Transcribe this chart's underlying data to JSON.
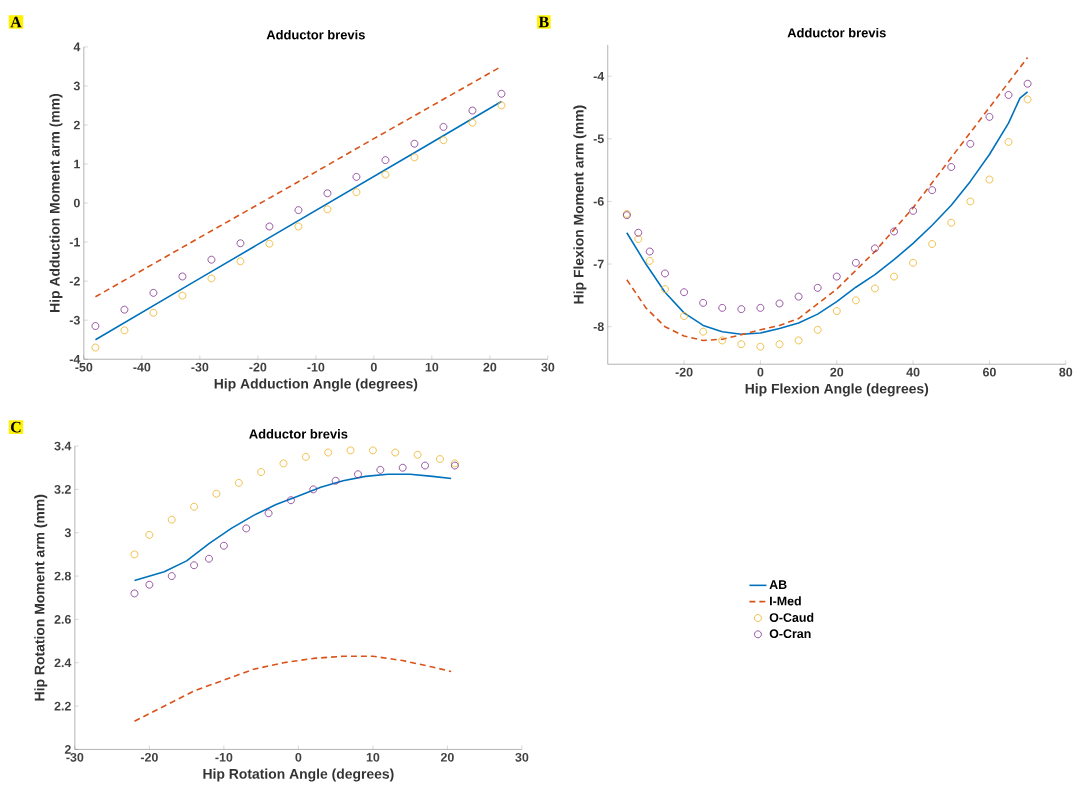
{
  "chart_data": [
    {
      "type": "line",
      "title": "Adductor brevis",
      "xlabel": "Hip Adduction Angle (degrees)",
      "ylabel": "Hip Adduction Moment arm (mm)",
      "annotations": [
        "A"
      ],
      "xlim": [
        -50,
        30
      ],
      "ylim": [
        -4,
        4
      ],
      "xticks": [
        -50,
        -40,
        -30,
        -20,
        -10,
        0,
        10,
        20,
        30
      ],
      "yticks": [
        -4,
        -3,
        -2,
        -1,
        0,
        1,
        2,
        3,
        4
      ],
      "series": [
        {
          "type": "line",
          "color": "#0072bd",
          "line_style": "solid",
          "x": [
            -48,
            -30,
            -10,
            0,
            10,
            22
          ],
          "values": [
            -3.5,
            -1.93,
            -0.19,
            0.68,
            1.55,
            2.6
          ]
        },
        {
          "type": "line",
          "color": "#d95319",
          "line_style": "dashed",
          "x": [
            -48,
            -30,
            -10,
            0,
            10,
            22
          ],
          "values": [
            -2.4,
            -0.88,
            0.8,
            1.65,
            2.49,
            3.5
          ]
        },
        {
          "type": "scatter",
          "color": "#edb120",
          "marker": "circle",
          "x": [
            -48,
            -43,
            -38,
            -33,
            -28,
            -23,
            -18,
            -13,
            -8,
            -3,
            2,
            7,
            12,
            17,
            22
          ],
          "values": [
            -3.7,
            -3.26,
            -2.81,
            -2.37,
            -1.93,
            -1.49,
            -1.04,
            -0.6,
            -0.16,
            0.28,
            0.73,
            1.17,
            1.61,
            2.06,
            2.5
          ]
        },
        {
          "type": "scatter",
          "color": "#7e2f8e",
          "marker": "circle",
          "x": [
            -48,
            -43,
            -38,
            -33,
            -28,
            -23,
            -18,
            -13,
            -8,
            -3,
            2,
            7,
            12,
            17,
            22
          ],
          "values": [
            -3.15,
            -2.73,
            -2.3,
            -1.88,
            -1.45,
            -1.03,
            -0.6,
            -0.18,
            0.25,
            0.67,
            1.1,
            1.52,
            1.95,
            2.37,
            2.8
          ]
        }
      ]
    },
    {
      "type": "line",
      "title": "Adductor brevis",
      "xlabel": "Hip Flexion Angle (degrees)",
      "ylabel": "Hip Flexion Moment arm (mm)",
      "annotations": [
        "B"
      ],
      "xlim": [
        -40,
        80
      ],
      "ylim": [
        -8.6,
        -3.5
      ],
      "xticks": [
        -20,
        0,
        20,
        40,
        60,
        80
      ],
      "yticks": [
        -8,
        -7,
        -6,
        -5,
        -4
      ],
      "series": [
        {
          "type": "line",
          "color": "#0072bd",
          "line_style": "solid",
          "x": [
            -35,
            -30,
            -25,
            -20,
            -15,
            -10,
            -5,
            0,
            5,
            10,
            15,
            20,
            25,
            30,
            35,
            40,
            45,
            50,
            55,
            60,
            65,
            68,
            70
          ],
          "values": [
            -6.5,
            -7.0,
            -7.45,
            -7.78,
            -7.98,
            -8.08,
            -8.12,
            -8.1,
            -8.03,
            -7.94,
            -7.8,
            -7.6,
            -7.37,
            -7.17,
            -6.93,
            -6.67,
            -6.38,
            -6.06,
            -5.68,
            -5.25,
            -4.75,
            -4.35,
            -4.25
          ]
        },
        {
          "type": "line",
          "color": "#d95319",
          "line_style": "dashed",
          "x": [
            -35,
            -30,
            -25,
            -20,
            -15,
            -10,
            -5,
            0,
            5,
            10,
            20,
            30,
            40,
            50,
            60,
            70
          ],
          "values": [
            -7.25,
            -7.7,
            -8.0,
            -8.15,
            -8.22,
            -8.2,
            -8.13,
            -8.05,
            -7.98,
            -7.87,
            -7.4,
            -6.8,
            -6.1,
            -5.3,
            -4.5,
            -3.7
          ]
        },
        {
          "type": "scatter",
          "color": "#edb120",
          "marker": "circle",
          "x": [
            -35,
            -32,
            -29,
            -25,
            -20,
            -15,
            -10,
            -5,
            0,
            5,
            10,
            15,
            20,
            25,
            30,
            35,
            40,
            45,
            50,
            55,
            60,
            65,
            70
          ],
          "values": [
            -6.2,
            -6.6,
            -6.95,
            -7.4,
            -7.83,
            -8.08,
            -8.22,
            -8.28,
            -8.32,
            -8.28,
            -8.22,
            -8.05,
            -7.75,
            -7.58,
            -7.39,
            -7.2,
            -6.98,
            -6.68,
            -6.34,
            -6.0,
            -5.65,
            -5.05,
            -4.37
          ]
        },
        {
          "type": "scatter",
          "color": "#7e2f8e",
          "marker": "circle",
          "x": [
            -35,
            -32,
            -29,
            -25,
            -20,
            -15,
            -10,
            -5,
            0,
            5,
            10,
            15,
            20,
            25,
            30,
            35,
            40,
            45,
            50,
            55,
            60,
            65,
            70
          ],
          "values": [
            -6.22,
            -6.5,
            -6.8,
            -7.15,
            -7.45,
            -7.62,
            -7.7,
            -7.72,
            -7.7,
            -7.63,
            -7.52,
            -7.38,
            -7.2,
            -6.98,
            -6.75,
            -6.48,
            -6.15,
            -5.82,
            -5.45,
            -5.08,
            -4.65,
            -4.3,
            -4.12
          ]
        }
      ]
    },
    {
      "type": "line",
      "title": "Adductor brevis",
      "xlabel": "Hip Rotation Angle (degrees)",
      "ylabel": "Hip Rotation Moment arm (mm)",
      "annotations": [
        "C"
      ],
      "legend": "right",
      "xlim": [
        -30,
        30
      ],
      "ylim": [
        2,
        3.4
      ],
      "xticks": [
        -30,
        -20,
        -10,
        0,
        10,
        20,
        30
      ],
      "yticks": [
        2,
        2.2,
        2.4,
        2.6,
        2.8,
        3,
        3.2,
        3.4
      ],
      "series": [
        {
          "name": "AB",
          "type": "line",
          "color": "#0072bd",
          "line_style": "solid",
          "x": [
            -22,
            -18,
            -15,
            -12,
            -9,
            -6,
            -3,
            0,
            3,
            6,
            9,
            12,
            15,
            18,
            20.5
          ],
          "values": [
            2.78,
            2.82,
            2.87,
            2.95,
            3.02,
            3.08,
            3.13,
            3.17,
            3.21,
            3.24,
            3.26,
            3.27,
            3.27,
            3.26,
            3.25
          ]
        },
        {
          "name": "I-Med",
          "type": "line",
          "color": "#d95319",
          "line_style": "dashed",
          "x": [
            -22,
            -18,
            -14,
            -10,
            -6,
            -2,
            2,
            6,
            10,
            14,
            18,
            20.5
          ],
          "values": [
            2.13,
            2.2,
            2.27,
            2.32,
            2.37,
            2.4,
            2.42,
            2.43,
            2.43,
            2.41,
            2.38,
            2.36
          ]
        },
        {
          "name": "O-Caud",
          "type": "scatter",
          "color": "#edb120",
          "marker": "circle",
          "x": [
            -22,
            -20,
            -17,
            -14,
            -11,
            -8,
            -5,
            -2,
            1,
            4,
            7,
            10,
            13,
            16,
            19,
            21
          ],
          "values": [
            2.9,
            2.99,
            3.06,
            3.12,
            3.18,
            3.23,
            3.28,
            3.32,
            3.35,
            3.37,
            3.38,
            3.38,
            3.37,
            3.36,
            3.34,
            3.32
          ]
        },
        {
          "name": "O-Cran",
          "type": "scatter",
          "color": "#7e2f8e",
          "marker": "circle",
          "x": [
            -22,
            -20,
            -17,
            -14,
            -12,
            -10,
            -7,
            -4,
            -1,
            2,
            5,
            8,
            11,
            14,
            17,
            21
          ],
          "values": [
            2.72,
            2.76,
            2.8,
            2.85,
            2.88,
            2.94,
            3.02,
            3.09,
            3.15,
            3.2,
            3.24,
            3.27,
            3.29,
            3.3,
            3.31,
            3.31
          ]
        }
      ]
    }
  ]
}
